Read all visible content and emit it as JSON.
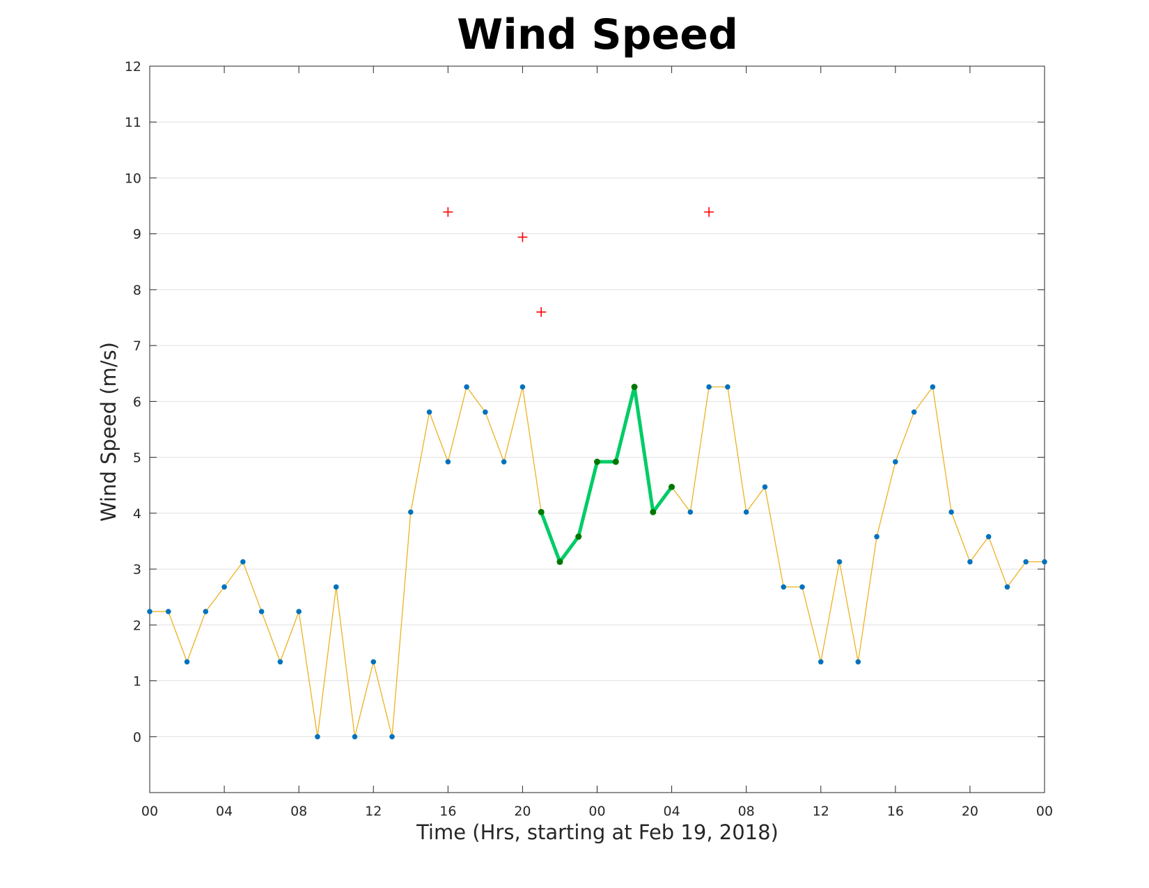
{
  "chart_data": {
    "type": "line",
    "title": "Wind Speed",
    "xlabel": "Time (Hrs, starting at Feb 19, 2018)",
    "ylabel": "Wind Speed (m/s)",
    "ylim": [
      -1,
      12
    ],
    "xlim": [
      0,
      48
    ],
    "grid": "horizontal",
    "yticks": [
      "0",
      "1",
      "2",
      "3",
      "4",
      "5",
      "6",
      "7",
      "8",
      "9",
      "10",
      "11",
      "12"
    ],
    "xticks": [
      {
        "x": 0,
        "label": "00"
      },
      {
        "x": 4,
        "label": "04"
      },
      {
        "x": 8,
        "label": "08"
      },
      {
        "x": 12,
        "label": "12"
      },
      {
        "x": 16,
        "label": "16"
      },
      {
        "x": 20,
        "label": "20"
      },
      {
        "x": 24,
        "label": "00"
      },
      {
        "x": 28,
        "label": "04"
      },
      {
        "x": 32,
        "label": "08"
      },
      {
        "x": 36,
        "label": "12"
      },
      {
        "x": 40,
        "label": "16"
      },
      {
        "x": 44,
        "label": "20"
      },
      {
        "x": 48,
        "label": "00"
      }
    ],
    "x": [
      0,
      1,
      2,
      3,
      4,
      5,
      6,
      7,
      8,
      9,
      10,
      11,
      12,
      13,
      14,
      15,
      16,
      17,
      18,
      19,
      20,
      21,
      22,
      23,
      24,
      25,
      26,
      27,
      28,
      29,
      30,
      31,
      32,
      33,
      34,
      35,
      36,
      37,
      38,
      39,
      40,
      41,
      42,
      43,
      44,
      45,
      46,
      47,
      48
    ],
    "series": [
      {
        "style": "thin-line-with-points",
        "color": "#EDB120",
        "marker_color": "#0072BD",
        "values": [
          2.24,
          2.24,
          1.34,
          2.24,
          2.68,
          3.13,
          2.24,
          1.34,
          2.24,
          0.0,
          2.68,
          0.0,
          1.34,
          0.0,
          4.02,
          5.81,
          4.92,
          6.26,
          5.81,
          4.92,
          6.26,
          4.02,
          3.13,
          3.58,
          4.92,
          4.92,
          6.26,
          4.02,
          4.47,
          4.02,
          6.26,
          6.26,
          4.02,
          4.47,
          2.68,
          2.68,
          1.34,
          3.13,
          1.34,
          3.58,
          4.92,
          5.81,
          6.26,
          4.02,
          3.13,
          3.58,
          2.68,
          3.13,
          3.13
        ]
      },
      {
        "style": "highlighted-segment",
        "color": "#00CC66",
        "marker_color": "#007700",
        "x": [
          21,
          22,
          23,
          24,
          25,
          26,
          27,
          28
        ],
        "values": [
          4.02,
          3.13,
          3.58,
          4.92,
          4.92,
          6.26,
          4.02,
          4.47
        ]
      },
      {
        "style": "plus-markers",
        "color": "#FF0000",
        "x": [
          16,
          20,
          21,
          30
        ],
        "values": [
          9.39,
          8.94,
          7.6,
          9.39
        ]
      }
    ]
  }
}
